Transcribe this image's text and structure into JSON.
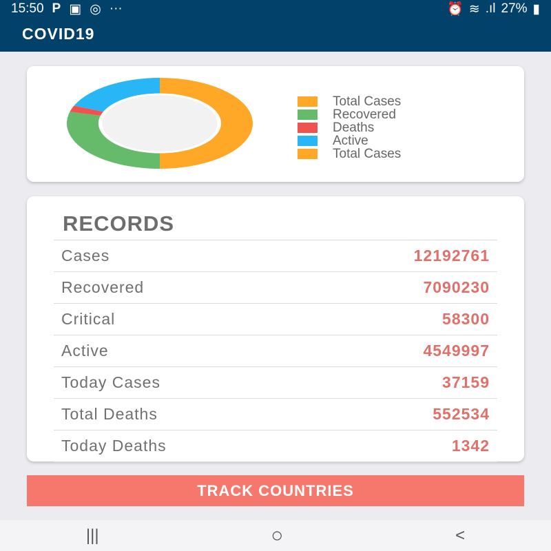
{
  "status_bar": {
    "time": "15:50",
    "battery": "27%",
    "icons": [
      "parking-icon",
      "gallery-icon",
      "instagram-icon",
      "more-icon",
      "alarm-icon",
      "wifi-icon",
      "signal-icon",
      "battery-icon"
    ]
  },
  "app_title": "COVID19",
  "chart_data": {
    "type": "pie",
    "donut": true,
    "legend_position": "right",
    "series": [
      {
        "name": "Total Cases",
        "value": 12192761,
        "color": "#ffa726"
      },
      {
        "name": "Recovered",
        "value": 7090230,
        "color": "#66bb6a"
      },
      {
        "name": "Deaths",
        "value": 552534,
        "color": "#ef5350"
      },
      {
        "name": "Active",
        "value": 4549997,
        "color": "#29b6f6"
      }
    ],
    "legend": [
      {
        "label": "Total Cases",
        "color": "#ffa726"
      },
      {
        "label": "Recovered",
        "color": "#66bb6a"
      },
      {
        "label": "Deaths",
        "color": "#ef5350"
      },
      {
        "label": "Active",
        "color": "#29b6f6"
      },
      {
        "label": "Total Cases",
        "color": "#ffa726"
      }
    ]
  },
  "records": {
    "title": "RECORDS",
    "rows": [
      {
        "label": "Cases",
        "value": "12192761"
      },
      {
        "label": "Recovered",
        "value": "7090230"
      },
      {
        "label": "Critical",
        "value": "58300"
      },
      {
        "label": "Active",
        "value": "4549997"
      },
      {
        "label": "Today Cases",
        "value": "37159"
      },
      {
        "label": "Total Deaths",
        "value": "552534"
      },
      {
        "label": "Today Deaths",
        "value": "1342"
      }
    ]
  },
  "track_button": "TRACK COUNTRIES",
  "nav": {
    "recents": "|||",
    "home": "○",
    "back": "<"
  }
}
